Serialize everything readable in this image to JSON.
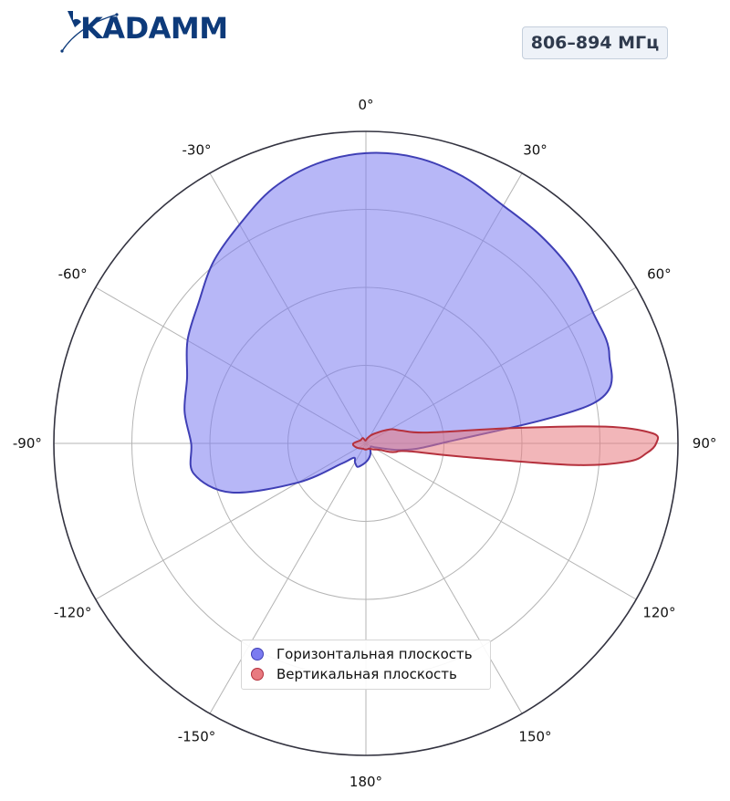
{
  "header": {
    "logo_text": "KADAMM",
    "frequency_badge": "806–894 МГц"
  },
  "colors": {
    "horizontal": "#7b7bf0",
    "horizontal_edge": "#3f3fb5",
    "vertical": "#e87a80",
    "vertical_edge": "#b5313d",
    "brand": "#0d3a7a"
  },
  "chart_data": {
    "type": "polar-area",
    "title": "",
    "angle_ticks": [
      "0°",
      "30°",
      "60°",
      "90°",
      "120°",
      "150°",
      "180°",
      "-150°",
      "-120°",
      "-90°",
      "-60°",
      "-30°"
    ],
    "angle_tick_values": [
      0,
      30,
      60,
      90,
      120,
      150,
      180,
      -150,
      -120,
      -90,
      -60,
      -30
    ],
    "radial_rings": [
      0.25,
      0.5,
      0.75,
      1.0
    ],
    "radial_max": 1.0,
    "zero_direction": "top",
    "rotation": "clockwise",
    "grid": true,
    "legend_position": "bottom-center",
    "series": [
      {
        "name": "Горизонтальная плоскость",
        "angles_deg": [
          0,
          10,
          20,
          30,
          40,
          50,
          60,
          70,
          80,
          90,
          100,
          110,
          120,
          130,
          140,
          150,
          160,
          170,
          180,
          190,
          200,
          210,
          220,
          230,
          240,
          250,
          260,
          270,
          280,
          290,
          300,
          310,
          320,
          330,
          340,
          350
        ],
        "r": [
          0.93,
          0.93,
          0.91,
          0.88,
          0.87,
          0.86,
          0.84,
          0.83,
          0.74,
          0.24,
          0.12,
          0.04,
          0.02,
          0.02,
          0.02,
          0.03,
          0.04,
          0.05,
          0.06,
          0.07,
          0.08,
          0.07,
          0.06,
          0.1,
          0.25,
          0.46,
          0.56,
          0.56,
          0.59,
          0.61,
          0.66,
          0.7,
          0.76,
          0.81,
          0.87,
          0.91
        ]
      },
      {
        "name": "Вертикальная плоскость",
        "angles_deg": [
          0,
          20,
          40,
          60,
          70,
          80,
          84,
          86,
          88,
          90,
          92,
          94,
          96,
          98,
          100,
          103,
          106,
          110,
          115,
          120,
          130,
          150,
          180,
          210,
          240,
          260,
          270,
          280,
          300,
          330,
          345
        ],
        "r": [
          0.01,
          0.02,
          0.04,
          0.09,
          0.12,
          0.2,
          0.47,
          0.77,
          0.92,
          0.93,
          0.9,
          0.84,
          0.66,
          0.3,
          0.15,
          0.11,
          0.1,
          0.08,
          0.05,
          0.04,
          0.03,
          0.02,
          0.02,
          0.02,
          0.03,
          0.04,
          0.04,
          0.03,
          0.02,
          0.02,
          0.01
        ]
      }
    ]
  }
}
